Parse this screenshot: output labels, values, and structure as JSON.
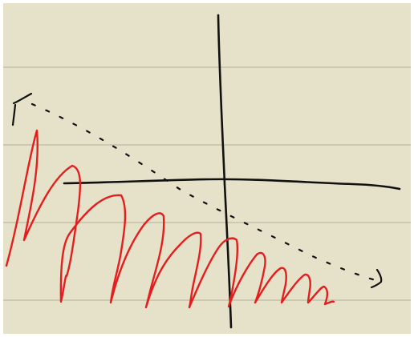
{
  "colors": {
    "paper": "#e6e1c9",
    "rule_line": "#c3c0aa",
    "border": "#ffffff",
    "axes_ink": "#111111",
    "dotted_ink": "#111111",
    "curve_ink": "#e41e1e"
  }
}
